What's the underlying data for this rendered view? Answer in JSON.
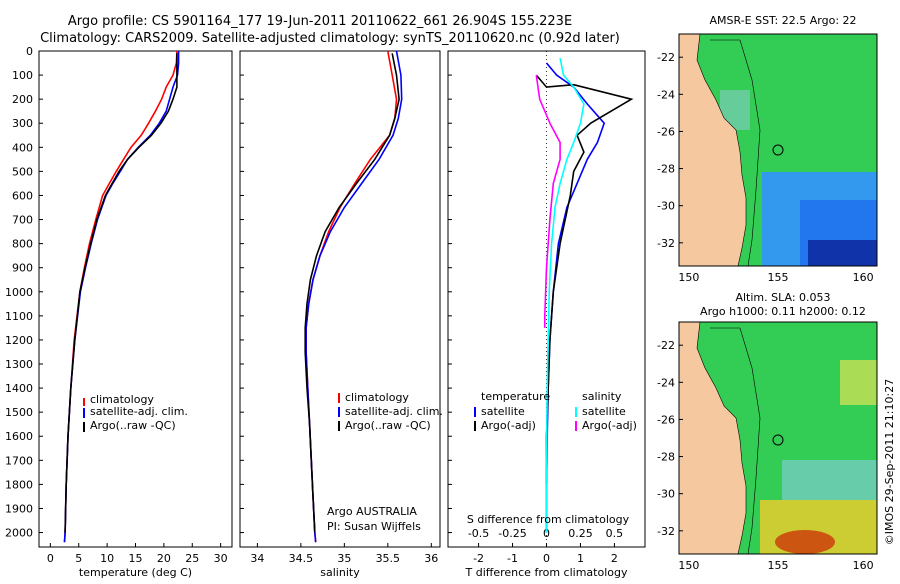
{
  "header": {
    "line1": "Argo profile: CS 5901164_177 19-Jun-2011 20110622_661 26.904S 155.223E",
    "line2": "Climatology: CARS2009. Satellite-adjusted climatology: synTS_20110620.nc (0.92d later)"
  },
  "colors": {
    "climatology": "#ff0000",
    "satellite": "#0000ff",
    "argo": "#000000",
    "salinity_satellite": "#00ffff",
    "salinity_argo": "#ff00ff",
    "land": "#f5c8a0",
    "ocean_green": "#33cc55",
    "ocean_blue": "#2277ee"
  },
  "depth_ticks": [
    "0",
    "100",
    "200",
    "300",
    "400",
    "500",
    "600",
    "700",
    "800",
    "900",
    "1000",
    "1100",
    "1200",
    "1300",
    "1400",
    "1500",
    "1600",
    "1700",
    "1800",
    "1900",
    "2000"
  ],
  "chart_data": [
    {
      "type": "line",
      "xlabel": "temperature (deg C)",
      "xlim": [
        -2,
        32
      ],
      "ylim": [
        2060,
        0
      ],
      "xticks": [
        "0",
        "5",
        "10",
        "15",
        "20",
        "25",
        "30"
      ],
      "xtick_values": [
        0,
        5,
        10,
        15,
        20,
        25,
        30
      ],
      "legend": [
        "climatology",
        "satellite-adj. clim.",
        "Argo(..raw -QC)"
      ],
      "series": [
        {
          "name": "climatology",
          "color": "#ff0000",
          "x": [
            22.3,
            22.2,
            21.6,
            20.4,
            19.6,
            18.5,
            17.3,
            16.0,
            14.2,
            12.9,
            11.6,
            10.4,
            9.2,
            8.0,
            6.9,
            6.0,
            5.2,
            4.2,
            3.6,
            3.1,
            2.8,
            2.6,
            2.5
          ],
          "y": [
            0,
            50,
            100,
            150,
            200,
            250,
            300,
            350,
            400,
            450,
            500,
            550,
            600,
            700,
            800,
            900,
            1000,
            1200,
            1400,
            1600,
            1800,
            2000,
            2040
          ]
        },
        {
          "name": "satellite-adj. clim.",
          "color": "#0000ff",
          "x": [
            22.6,
            22.6,
            22.4,
            21.6,
            21.0,
            20.4,
            19.2,
            17.6,
            15.5,
            13.6,
            12.3,
            11.0,
            9.8,
            8.3,
            7.2,
            6.2,
            5.3,
            4.3,
            3.6,
            3.1,
            2.8,
            2.6,
            2.5
          ],
          "y": [
            0,
            50,
            100,
            150,
            200,
            250,
            300,
            350,
            400,
            450,
            500,
            550,
            600,
            700,
            800,
            900,
            1000,
            1200,
            1400,
            1600,
            1800,
            2000,
            2040
          ]
        },
        {
          "name": "Argo(..raw -QC)",
          "color": "#000000",
          "x": [
            22.3,
            22.3,
            22.3,
            22.3,
            21.6,
            20.8,
            19.5,
            17.8,
            15.6,
            13.6,
            12.1,
            10.9,
            9.7,
            8.2,
            7.1,
            6.1,
            5.2,
            4.3,
            3.6,
            3.1,
            2.8,
            2.6
          ],
          "y": [
            10,
            50,
            100,
            150,
            200,
            250,
            300,
            350,
            400,
            450,
            500,
            550,
            600,
            700,
            800,
            900,
            1000,
            1200,
            1400,
            1600,
            1800,
            2000
          ]
        }
      ]
    },
    {
      "type": "line",
      "xlabel": "salinity",
      "xlim": [
        33.8,
        36.1
      ],
      "ylim": [
        2060,
        0
      ],
      "xticks": [
        "34",
        "34.5",
        "35",
        "35.5",
        "36"
      ],
      "xtick_values": [
        34,
        34.5,
        35,
        35.5,
        36
      ],
      "legend": [
        "climatology",
        "satellite-adj. clim.",
        "Argo(..raw -QC)"
      ],
      "annotations": [
        "Argo AUSTRALIA",
        "PI: Susan Wijffels"
      ],
      "series": [
        {
          "name": "climatology",
          "color": "#ff0000",
          "x": [
            35.5,
            35.55,
            35.6,
            35.58,
            35.52,
            35.3,
            35.12,
            34.95,
            34.82,
            34.72,
            34.64,
            34.59,
            34.56,
            34.56,
            34.58,
            34.6,
            34.62,
            34.64,
            34.66,
            34.67
          ],
          "y": [
            0,
            100,
            200,
            280,
            350,
            450,
            550,
            650,
            750,
            850,
            950,
            1050,
            1150,
            1250,
            1400,
            1550,
            1700,
            1850,
            2000,
            2040
          ]
        },
        {
          "name": "satellite-adj. clim.",
          "color": "#0000ff",
          "x": [
            35.6,
            35.65,
            35.66,
            35.62,
            35.56,
            35.4,
            35.2,
            35.0,
            34.84,
            34.72,
            34.64,
            34.59,
            34.56,
            34.56,
            34.58,
            34.6,
            34.62,
            34.64,
            34.66,
            34.67
          ],
          "y": [
            0,
            100,
            200,
            280,
            350,
            450,
            550,
            650,
            750,
            850,
            950,
            1050,
            1150,
            1250,
            1400,
            1550,
            1700,
            1850,
            2000,
            2040
          ]
        },
        {
          "name": "Argo(..raw -QC)",
          "color": "#000000",
          "x": [
            35.55,
            35.6,
            35.63,
            35.58,
            35.52,
            35.35,
            35.14,
            34.94,
            34.78,
            34.68,
            34.61,
            34.57,
            34.55,
            34.55,
            34.57,
            34.6,
            34.62,
            34.64,
            34.66
          ],
          "y": [
            10,
            100,
            200,
            280,
            350,
            450,
            550,
            650,
            750,
            850,
            950,
            1050,
            1150,
            1250,
            1400,
            1550,
            1700,
            1850,
            2000
          ]
        }
      ]
    },
    {
      "type": "line",
      "xlabel": "T difference from climatology",
      "xlabel_top": "S difference from climatology",
      "xlim": [
        -2.9,
        2.9
      ],
      "ylim": [
        2060,
        0
      ],
      "xticks": [
        "-2",
        "-1",
        "0",
        "1",
        "2"
      ],
      "xtick_values": [
        -2,
        -1,
        0,
        1,
        2
      ],
      "sticks": [
        "-0.5",
        "-0.25",
        "0",
        "0.25",
        "0.5"
      ],
      "stick_values": [
        -2,
        -1,
        0,
        1,
        2
      ],
      "legend_temperature": [
        "temperature",
        "satellite",
        "Argo(-adj)"
      ],
      "legend_salinity": [
        "salinity",
        "satellite",
        "Argo(-adj)"
      ],
      "series": [
        {
          "name": "satellite",
          "color": "#0000ff",
          "x": [
            0,
            0.3,
            0.8,
            1.2,
            1.7,
            1.5,
            1.2,
            0.9,
            0.6,
            0.35,
            0.2,
            0.1,
            0.05,
            0.02,
            0,
            0
          ],
          "y": [
            50,
            100,
            150,
            220,
            300,
            380,
            450,
            550,
            650,
            800,
            1000,
            1200,
            1400,
            1600,
            1800,
            2000
          ]
        },
        {
          "name": "Argo(-adj)",
          "color": "#000000",
          "x": [
            -0.3,
            0,
            0.8,
            2.5,
            1.3,
            0.9,
            1.1,
            0.8,
            0.7,
            0.4,
            0.2,
            0.1,
            0.05,
            0,
            0
          ],
          "y": [
            100,
            150,
            140,
            200,
            300,
            350,
            420,
            500,
            600,
            800,
            1000,
            1200,
            1400,
            1600,
            1800
          ]
        },
        {
          "name": "salinity satellite",
          "color": "#00ffff",
          "x": [
            0.4,
            0.5,
            0.8,
            1.1,
            1.0,
            0.8,
            0.6,
            0.4,
            0.25,
            0.15,
            0.08,
            0.05,
            0.02,
            0,
            0
          ],
          "y": [
            30,
            100,
            150,
            220,
            300,
            380,
            450,
            550,
            650,
            800,
            1000,
            1200,
            1400,
            1700,
            2000
          ]
        },
        {
          "name": "salinity Argo(-adj)",
          "color": "#ff00ff",
          "x": [
            -0.3,
            -0.2,
            0.1,
            0.4,
            0.4,
            0.2,
            0.1,
            0,
            -0.05,
            -0.05
          ],
          "y": [
            100,
            200,
            300,
            380,
            450,
            550,
            700,
            900,
            1100,
            1150
          ]
        }
      ]
    }
  ],
  "maps": [
    {
      "title": "AMSR-E SST: 22.5 Argo: 22",
      "lon_ticks": [
        "150",
        "155",
        "160"
      ],
      "lat_ticks": [
        "-22",
        "-24",
        "-26",
        "-28",
        "-30",
        "-32"
      ]
    },
    {
      "title_line1": "Altim. SLA: 0.053",
      "title_line2": "Argo h1000: 0.11 h2000: 0.12",
      "lon_ticks": [
        "150",
        "155",
        "160"
      ],
      "lat_ticks": [
        "-22",
        "-24",
        "-26",
        "-28",
        "-30",
        "-32"
      ]
    }
  ],
  "footer_stamp": "©IMOS 29-Sep-2011 21:10:27"
}
